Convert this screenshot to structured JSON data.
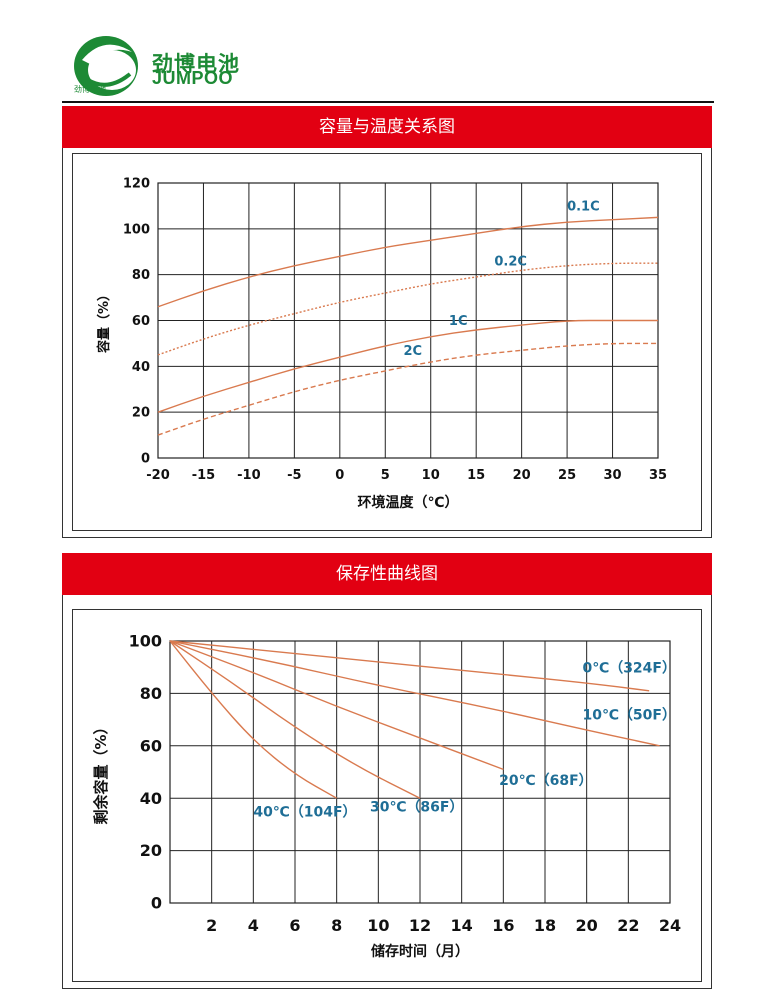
{
  "brand": {
    "name_cn": "劲博电池",
    "name_en": "JUMPOO",
    "logo_text": "劲博电池"
  },
  "colors": {
    "header_red": "#e20012",
    "brand_green": "#1d8a35",
    "curve": "#d97a4f",
    "label_blue": "#1f6e96"
  },
  "chart_data": [
    {
      "type": "line",
      "title": "容量与温度关系图",
      "xlabel": "环境温度（℃）",
      "ylabel": "容量（%）",
      "xlim": [
        -20,
        35
      ],
      "ylim": [
        0,
        120
      ],
      "xticks": [
        -20,
        -15,
        -10,
        -5,
        0,
        5,
        10,
        15,
        20,
        25,
        30,
        35
      ],
      "yticks": [
        0,
        20,
        40,
        60,
        80,
        100,
        120
      ],
      "grid": true,
      "series": [
        {
          "name": "0.1C",
          "style": "solid",
          "x": [
            -20,
            -15,
            -10,
            -5,
            0,
            5,
            10,
            15,
            20,
            25,
            30,
            35
          ],
          "y": [
            66,
            73,
            79,
            84,
            88,
            92,
            95,
            98,
            101,
            103,
            104,
            105
          ]
        },
        {
          "name": "0.2C",
          "style": "dotted",
          "x": [
            -20,
            -15,
            -10,
            -5,
            0,
            5,
            10,
            15,
            20,
            25,
            30,
            35
          ],
          "y": [
            45,
            52,
            58,
            63,
            68,
            72,
            76,
            79,
            82,
            84,
            85,
            85
          ]
        },
        {
          "name": "1C",
          "style": "solid",
          "x": [
            -20,
            -15,
            -10,
            -5,
            0,
            5,
            10,
            15,
            20,
            25,
            30,
            35
          ],
          "y": [
            20,
            27,
            33,
            39,
            44,
            49,
            53,
            56,
            58,
            60,
            60,
            60
          ]
        },
        {
          "name": "2C",
          "style": "dashed",
          "x": [
            -20,
            -15,
            -10,
            -5,
            0,
            5,
            10,
            15,
            20,
            25,
            30,
            35
          ],
          "y": [
            10,
            17,
            23,
            29,
            34,
            38,
            42,
            45,
            47,
            49,
            50,
            50
          ]
        }
      ],
      "labels": [
        {
          "text": "0.1C",
          "x": 25,
          "y": 108
        },
        {
          "text": "0.2C",
          "x": 17,
          "y": 84
        },
        {
          "text": "1C",
          "x": 12,
          "y": 58
        },
        {
          "text": "2C",
          "x": 7,
          "y": 45
        }
      ]
    },
    {
      "type": "line",
      "title": "保存性曲线图",
      "xlabel": "储存时间（月）",
      "ylabel": "剩余容量（%）",
      "xlim": [
        0,
        24
      ],
      "ylim": [
        0,
        100
      ],
      "xticks": [
        2,
        4,
        6,
        8,
        10,
        12,
        14,
        16,
        18,
        20,
        22,
        24
      ],
      "yticks": [
        0,
        20,
        40,
        60,
        80,
        100
      ],
      "grid": true,
      "series": [
        {
          "name": "0℃（324F）",
          "x": [
            0,
            5,
            10,
            15,
            20,
            23
          ],
          "y": [
            100,
            96,
            92,
            88,
            84,
            81
          ]
        },
        {
          "name": "10℃（50F）",
          "x": [
            0,
            5,
            10,
            15,
            20,
            23.5
          ],
          "y": [
            100,
            92,
            83,
            75,
            66,
            60
          ]
        },
        {
          "name": "20℃（68F）",
          "x": [
            0,
            4,
            8,
            12,
            16
          ],
          "y": [
            100,
            88,
            75,
            63,
            51
          ]
        },
        {
          "name": "30℃（86F）",
          "x": [
            0,
            3,
            6,
            9,
            12
          ],
          "y": [
            100,
            84,
            67,
            52,
            40
          ]
        },
        {
          "name": "40℃（104F）",
          "x": [
            0,
            2,
            4,
            6,
            8
          ],
          "y": [
            100,
            80,
            62,
            49,
            40
          ]
        }
      ],
      "labels": [
        {
          "text": "0℃（324F）",
          "x": 19.8,
          "y": 88
        },
        {
          "text": "10℃（50F）",
          "x": 19.8,
          "y": 70
        },
        {
          "text": "20℃（68F）",
          "x": 15.8,
          "y": 45
        },
        {
          "text": "30℃（86F）",
          "x": 9.6,
          "y": 35
        },
        {
          "text": "40℃（104F）",
          "x": 4.0,
          "y": 33
        }
      ]
    }
  ]
}
